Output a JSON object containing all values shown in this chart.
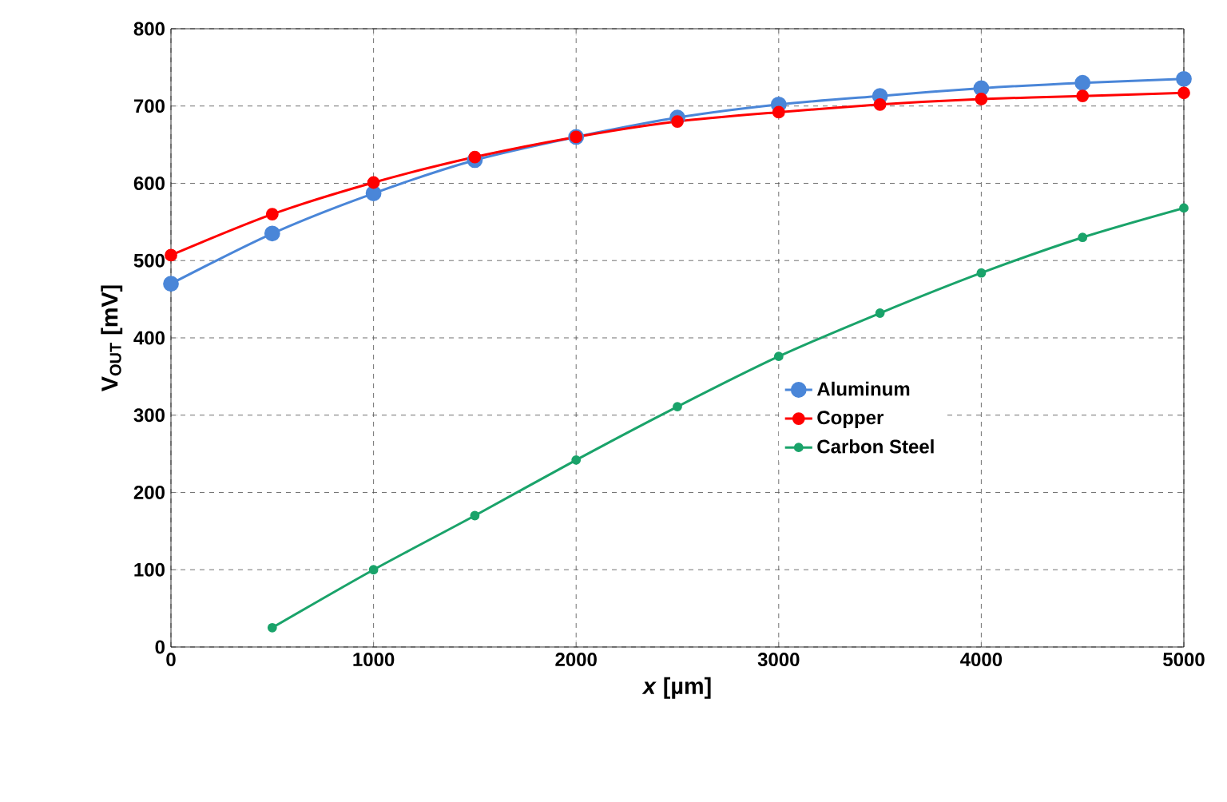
{
  "chart_data": {
    "type": "line",
    "xlabel": "*x* [µm]",
    "ylabel": "V$_{OUT}$ [mV]",
    "x": [
      0,
      500,
      1000,
      1500,
      2000,
      2500,
      3000,
      3500,
      4000,
      4500,
      5000
    ],
    "series": [
      {
        "name": "Aluminum",
        "color": "#4a86d8",
        "values": [
          470,
          535,
          587,
          630,
          660,
          685,
          702,
          713,
          723,
          730,
          735
        ]
      },
      {
        "name": "Copper",
        "color": "#ff0000",
        "values": [
          507,
          560,
          601,
          634,
          660,
          680,
          692,
          702,
          709,
          713,
          717
        ]
      },
      {
        "name": "Carbon Steel",
        "color": "#1aa36a",
        "values": [
          null,
          25,
          100,
          170,
          242,
          311,
          376,
          432,
          484,
          530,
          568
        ]
      }
    ],
    "xlim": [
      0,
      5000
    ],
    "ylim": [
      0,
      800
    ],
    "xticks": [
      0,
      1000,
      2000,
      3000,
      4000,
      5000
    ],
    "yticks": [
      0,
      100,
      200,
      300,
      400,
      500,
      600,
      700,
      800
    ],
    "grid": true,
    "legend": "right",
    "marker": "circle",
    "line_style": "solid"
  }
}
